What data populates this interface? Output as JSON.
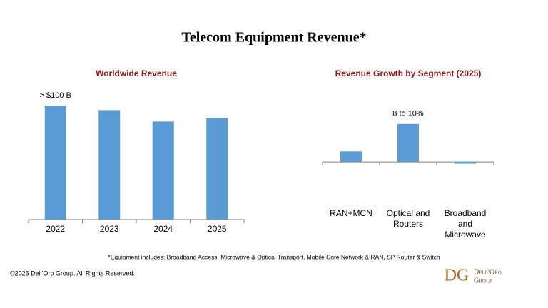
{
  "title": "Telecom Equipment Revenue*",
  "footnote": "*Equipment includes: Broadband Access, Microwave & Optical Transport, Mobile Core Network & RAN, SP Router & Switch",
  "copyright": "©2026 Dell'Oro Group. All Rights Reserved.",
  "logo": {
    "mark": "DG",
    "name": "Dell'Oro",
    "group": "Group"
  },
  "chart_data": [
    {
      "type": "bar",
      "title": "Worldwide Revenue",
      "categories": [
        "2022",
        "2023",
        "2024",
        "2025"
      ],
      "values": [
        100,
        96,
        86,
        89
      ],
      "value_labels": [
        "> $100 B",
        null,
        null,
        null
      ],
      "color": "#5b9bd5",
      "ylim": [
        0,
        110
      ]
    },
    {
      "type": "bar",
      "title": "Revenue Growth by Segment (2025)",
      "categories": [
        "RAN+MCN",
        "Optical and Routers",
        "Broadband and Microwave"
      ],
      "values": [
        2.5,
        9,
        -0.4
      ],
      "value_labels": [
        null,
        "8 to 10%",
        null
      ],
      "color": "#5b9bd5",
      "ylim": [
        -2,
        12
      ]
    }
  ]
}
